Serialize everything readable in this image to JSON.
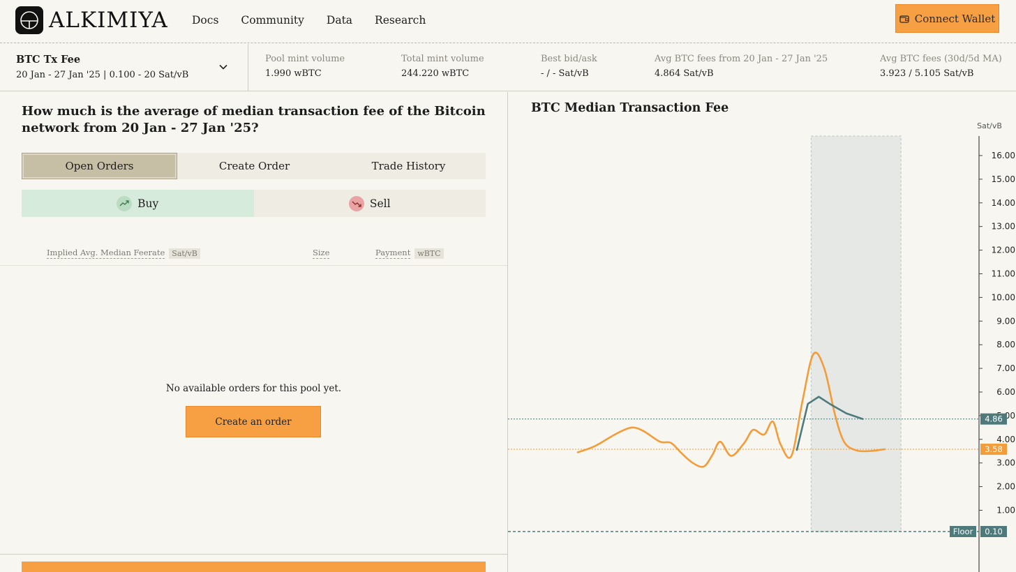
{
  "brand": {
    "name": "ALKIMIYA"
  },
  "nav": {
    "links": [
      "Docs",
      "Community",
      "Data",
      "Research"
    ],
    "connect_label": "Connect Wallet"
  },
  "pool": {
    "name": "BTC Tx Fee",
    "subtitle": "20 Jan - 27 Jan '25 | 0.100 - 20 Sat/vB"
  },
  "stats": [
    {
      "label": "Pool mint volume",
      "value": "1.990 wBTC"
    },
    {
      "label": "Total mint volume",
      "value": "244.220 wBTC"
    },
    {
      "label": "Best bid/ask",
      "value": "- / - Sat/vB"
    },
    {
      "label": "Avg BTC fees from 20 Jan - 27 Jan '25",
      "value": "4.864 Sat/vB"
    },
    {
      "label": "Avg BTC fees (30d/5d MA)",
      "value": "3.923 / 5.105 Sat/vB"
    }
  ],
  "question": "How much is the average of median transaction fee of the Bitcoin network from 20 Jan - 27 Jan '25?",
  "tabs": [
    {
      "label": "Open Orders",
      "active": true
    },
    {
      "label": "Create Order",
      "active": false
    },
    {
      "label": "Trade History",
      "active": false
    }
  ],
  "side": {
    "buy_label": "Buy",
    "sell_label": "Sell",
    "active": "buy"
  },
  "columns": {
    "feerate": {
      "label": "Implied Avg. Median Feerate",
      "unit": "Sat/vB"
    },
    "size": {
      "label": "Size"
    },
    "payment": {
      "label": "Payment",
      "unit": "wBTC"
    }
  },
  "empty_message": "No available orders for this pool yet.",
  "create_order_label": "Create an order",
  "colors": {
    "accent": "#f7a043",
    "teal": "#4e7a7c",
    "buy": "#d6ebdc",
    "sell": "#efece4"
  },
  "chart_data": {
    "type": "line",
    "title": "BTC Median Transaction Fee",
    "ylabel": "Sat/vB",
    "ylim": [
      0,
      16.5
    ],
    "yticks": [
      "1.00",
      "2.00",
      "3.00",
      "4.00",
      "5.00",
      "6.00",
      "7.00",
      "8.00",
      "9.00",
      "10.00",
      "11.00",
      "12.00",
      "13.00",
      "14.00",
      "15.00",
      "16.00"
    ],
    "series": [
      {
        "color": "#f39c3a",
        "x": [
          0,
          1.5,
          3,
          4,
          5,
          6,
          7.5,
          8.5,
          9.5,
          10.5,
          11.5,
          12.3,
          13,
          14,
          15.2,
          16,
          17,
          17.8,
          18.5,
          19.5,
          20.5,
          21.5,
          22.5,
          23.5,
          24.3,
          25.3,
          26.5,
          28
        ],
        "values": [
          3.45,
          3.7,
          4.1,
          4.35,
          4.5,
          4.35,
          3.9,
          3.85,
          3.4,
          3.0,
          2.85,
          3.35,
          3.9,
          3.3,
          3.85,
          4.4,
          4.2,
          4.75,
          3.8,
          3.3,
          5.6,
          7.6,
          7.0,
          5.0,
          3.9,
          3.55,
          3.5,
          3.58
        ]
      },
      {
        "color": "#4e7a7c",
        "x": [
          20,
          21,
          22,
          23,
          24.5,
          26
        ],
        "values": [
          3.55,
          5.5,
          5.8,
          5.5,
          5.1,
          4.86
        ]
      }
    ],
    "reference_lines": [
      {
        "value": 4.86,
        "label": "4.86",
        "color": "#4e7a7c"
      },
      {
        "value": 3.58,
        "label": "3.58",
        "color": "#f39c3a"
      },
      {
        "value": 0.1,
        "label": "0.10",
        "tag": "Floor",
        "color": "#4e7a7c"
      }
    ],
    "highlight_range": [
      21.3,
      29.5
    ]
  }
}
